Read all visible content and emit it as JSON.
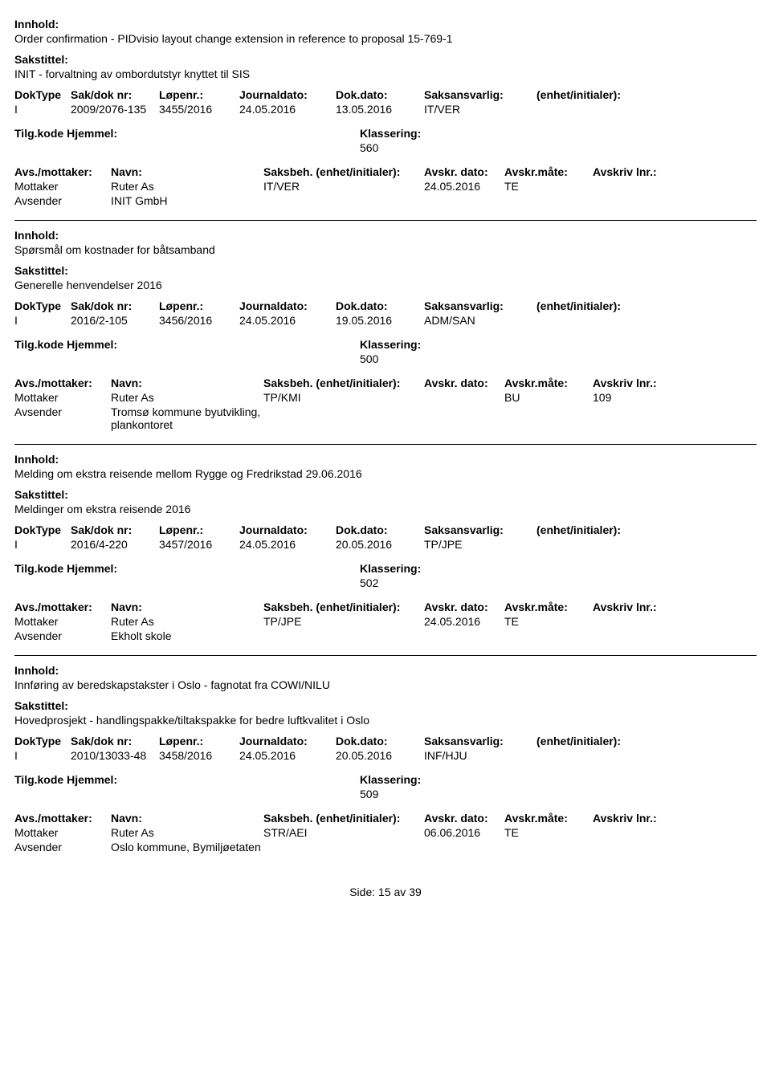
{
  "labels": {
    "innhold": "Innhold:",
    "sakstittel": "Sakstittel:",
    "dokType": "DokType",
    "sakDok": "Sak/dok nr:",
    "lopenr": "Løpenr.:",
    "journaldato": "Journaldato:",
    "dokdato": "Dok.dato:",
    "saksansvarlig": "Saksansvarlig:",
    "enhet": "(enhet/initialer):",
    "tilgkode": "Tilg.kode",
    "hjemmel": "Hjemmel:",
    "klassering": "Klassering:",
    "avsMottaker": "Avs./mottaker:",
    "navn": "Navn:",
    "saksbeh": "Saksbeh.",
    "saksbehEnhet": "(enhet/initialer):",
    "avskrDato": "Avskr. dato:",
    "avskrMate": "Avskr.måte:",
    "avskrivLnr": "Avskriv lnr.:",
    "mottaker": "Mottaker",
    "avsender": "Avsender",
    "side": "Side:",
    "av": "av"
  },
  "footer": {
    "page": "15",
    "total": "39"
  },
  "records": [
    {
      "innhold": "Order confirmation - PIDvisio layout change extension in reference to proposal 15-769-1",
      "sakstittel": "INIT - forvaltning av ombordutstyr knyttet til SIS",
      "dokType": "I",
      "sakDok": "2009/2076-135",
      "lopenr": "3455/2016",
      "journaldato": "24.05.2016",
      "dokdato": "13.05.2016",
      "saksansvarlig": "IT/VER",
      "klassering": "560",
      "parties": [
        {
          "role": "Mottaker",
          "navn": "Ruter As",
          "saksbeh": "IT/VER",
          "avskrDato": "24.05.2016",
          "avskrMate": "TE",
          "avskrivLnr": ""
        },
        {
          "role": "Avsender",
          "navn": "INIT GmbH",
          "saksbeh": "",
          "avskrDato": "",
          "avskrMate": "",
          "avskrivLnr": ""
        }
      ]
    },
    {
      "innhold": "Spørsmål om kostnader for båtsamband",
      "sakstittel": "Generelle henvendelser 2016",
      "dokType": "I",
      "sakDok": "2016/2-105",
      "lopenr": "3456/2016",
      "journaldato": "24.05.2016",
      "dokdato": "19.05.2016",
      "saksansvarlig": "ADM/SAN",
      "klassering": "500",
      "parties": [
        {
          "role": "Mottaker",
          "navn": "Ruter As",
          "saksbeh": "TP/KMI",
          "avskrDato": "",
          "avskrMate": "BU",
          "avskrivLnr": "109"
        },
        {
          "role": "Avsender",
          "navn": "Tromsø kommune byutvikling, plankontoret",
          "saksbeh": "",
          "avskrDato": "",
          "avskrMate": "",
          "avskrivLnr": ""
        }
      ]
    },
    {
      "innhold": "Melding om ekstra reisende mellom Rygge og Fredrikstad 29.06.2016",
      "sakstittel": "Meldinger om ekstra reisende 2016",
      "dokType": "I",
      "sakDok": "2016/4-220",
      "lopenr": "3457/2016",
      "journaldato": "24.05.2016",
      "dokdato": "20.05.2016",
      "saksansvarlig": "TP/JPE",
      "klassering": "502",
      "parties": [
        {
          "role": "Mottaker",
          "navn": "Ruter As",
          "saksbeh": "TP/JPE",
          "avskrDato": "24.05.2016",
          "avskrMate": "TE",
          "avskrivLnr": ""
        },
        {
          "role": "Avsender",
          "navn": "Ekholt skole",
          "saksbeh": "",
          "avskrDato": "",
          "avskrMate": "",
          "avskrivLnr": ""
        }
      ]
    },
    {
      "innhold": "Innføring av beredskapstakster i Oslo - fagnotat fra COWI/NILU",
      "sakstittel": "Hovedprosjekt - handlingspakke/tiltakspakke for bedre luftkvalitet i Oslo",
      "dokType": "I",
      "sakDok": "2010/13033-48",
      "lopenr": "3458/2016",
      "journaldato": "24.05.2016",
      "dokdato": "20.05.2016",
      "saksansvarlig": "INF/HJU",
      "klassering": "509",
      "parties": [
        {
          "role": "Mottaker",
          "navn": "Ruter As",
          "saksbeh": "STR/AEI",
          "avskrDato": "06.06.2016",
          "avskrMate": "TE",
          "avskrivLnr": ""
        },
        {
          "role": "Avsender",
          "navn": "Oslo kommune, Bymiljøetaten",
          "saksbeh": "",
          "avskrDato": "",
          "avskrMate": "",
          "avskrivLnr": ""
        }
      ]
    }
  ]
}
